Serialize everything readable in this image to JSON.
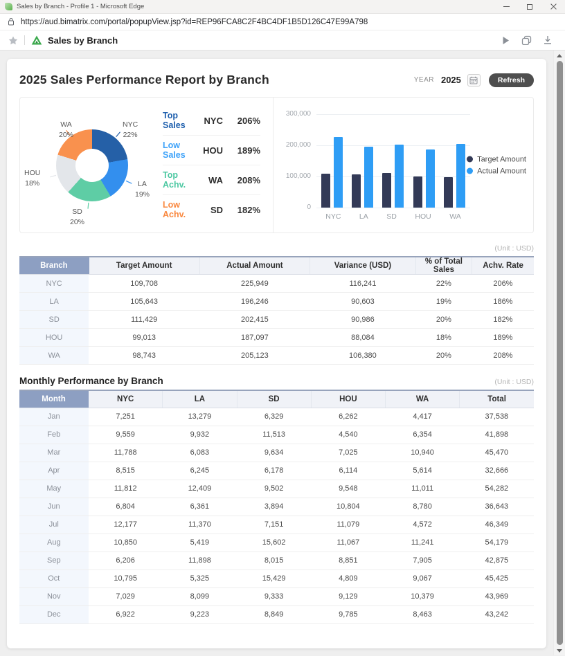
{
  "browser": {
    "title": "Sales by Branch - Profile 1 - Microsoft Edge",
    "url": "https://aud.bimatrix.com/portal/popupView.jsp?id=REP96FCA8C2F4BC4DF1B5D126C47E99A798",
    "page_name": "Sales by Branch"
  },
  "header": {
    "title": "2025 Sales Performance Report by Branch",
    "year_label": "YEAR",
    "year_value": "2025",
    "refresh_label": "Refresh"
  },
  "kpis": [
    {
      "label": "Top Sales",
      "branch": "NYC",
      "value": "206%",
      "color": "#1e5fad"
    },
    {
      "label": "Low Sales",
      "branch": "HOU",
      "value": "189%",
      "color": "#3da2f9"
    },
    {
      "label": "Top Achv.",
      "branch": "WA",
      "value": "208%",
      "color": "#4dc8a2"
    },
    {
      "label": "Low Achv.",
      "branch": "SD",
      "value": "182%",
      "color": "#f9883f"
    }
  ],
  "chart_data": [
    {
      "type": "pie",
      "donut": true,
      "labels": [
        "NYC",
        "LA",
        "SD",
        "HOU",
        "WA"
      ],
      "values": [
        22,
        19,
        20,
        18,
        20
      ],
      "unit": "%",
      "colors": [
        "#2560a7",
        "#338fee",
        "#5ecda5",
        "#e3e6ea",
        "#f9914e"
      ]
    },
    {
      "type": "bar",
      "categories": [
        "NYC",
        "LA",
        "SD",
        "HOU",
        "WA"
      ],
      "series": [
        {
          "name": "Target Amount",
          "color": "#333a57",
          "values": [
            109708,
            105643,
            111429,
            99013,
            98743
          ]
        },
        {
          "name": "Actual Amount",
          "color": "#2e9df5",
          "values": [
            225949,
            196246,
            202415,
            187097,
            205123
          ]
        }
      ],
      "ylim": [
        0,
        300000
      ],
      "yticks": [
        "300,000",
        "200,000",
        "100,000",
        "0"
      ],
      "grid": true,
      "legend_position": "right"
    }
  ],
  "summary_table": {
    "unit_label": "(Unit : USD)",
    "columns": [
      "Branch",
      "Target Amount",
      "Actual Amount",
      "Variance (USD)",
      "% of Total Sales",
      "Achv. Rate"
    ],
    "rows": [
      [
        "NYC",
        "109,708",
        "225,949",
        "116,241",
        "22%",
        "206%"
      ],
      [
        "LA",
        "105,643",
        "196,246",
        "90,603",
        "19%",
        "186%"
      ],
      [
        "SD",
        "111,429",
        "202,415",
        "90,986",
        "20%",
        "182%"
      ],
      [
        "HOU",
        "99,013",
        "187,097",
        "88,084",
        "18%",
        "189%"
      ],
      [
        "WA",
        "98,743",
        "205,123",
        "106,380",
        "20%",
        "208%"
      ]
    ]
  },
  "monthly_table": {
    "title": "Monthly Performance by Branch",
    "unit_label": "(Unit : USD)",
    "columns": [
      "Month",
      "NYC",
      "LA",
      "SD",
      "HOU",
      "WA",
      "Total"
    ],
    "rows": [
      [
        "Jan",
        "7,251",
        "13,279",
        "6,329",
        "6,262",
        "4,417",
        "37,538"
      ],
      [
        "Feb",
        "9,559",
        "9,932",
        "11,513",
        "4,540",
        "6,354",
        "41,898"
      ],
      [
        "Mar",
        "11,788",
        "6,083",
        "9,634",
        "7,025",
        "10,940",
        "45,470"
      ],
      [
        "Apr",
        "8,515",
        "6,245",
        "6,178",
        "6,114",
        "5,614",
        "32,666"
      ],
      [
        "May",
        "11,812",
        "12,409",
        "9,502",
        "9,548",
        "11,011",
        "54,282"
      ],
      [
        "Jun",
        "6,804",
        "6,361",
        "3,894",
        "10,804",
        "8,780",
        "36,643"
      ],
      [
        "Jul",
        "12,177",
        "11,370",
        "7,151",
        "11,079",
        "4,572",
        "46,349"
      ],
      [
        "Aug",
        "10,850",
        "5,419",
        "15,602",
        "11,067",
        "11,241",
        "54,179"
      ],
      [
        "Sep",
        "6,206",
        "11,898",
        "8,015",
        "8,851",
        "7,905",
        "42,875"
      ],
      [
        "Oct",
        "10,795",
        "5,325",
        "15,429",
        "4,809",
        "9,067",
        "45,425"
      ],
      [
        "Nov",
        "7,029",
        "8,099",
        "9,333",
        "9,129",
        "10,379",
        "43,969"
      ],
      [
        "Dec",
        "6,922",
        "9,223",
        "8,849",
        "9,785",
        "8,463",
        "43,242"
      ]
    ]
  }
}
